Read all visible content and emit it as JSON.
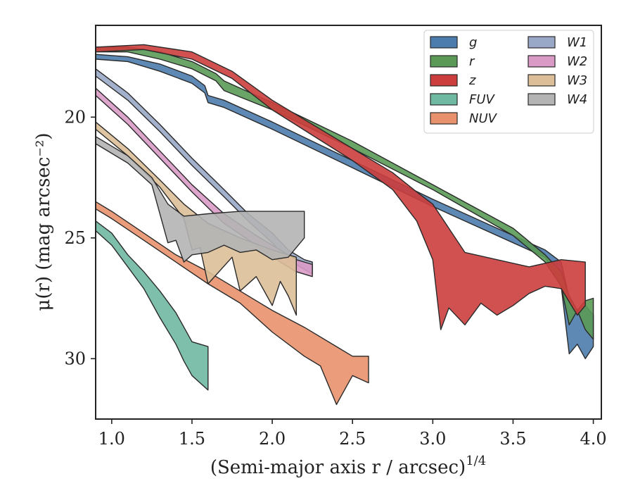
{
  "chart_data": {
    "type": "area",
    "xlabel": "(Semi-major axis r / arcsec)",
    "xlabel_exponent": "1/4",
    "ylabel": "μ(r) (mag arcsec⁻²)",
    "xlim": [
      0.9,
      4.05
    ],
    "ylim": [
      32.5,
      16.2
    ],
    "y_inverted": true,
    "x_ticks": [
      1.0,
      1.5,
      2.0,
      2.5,
      3.0,
      3.5,
      4.0
    ],
    "x_tick_labels": [
      "1.0",
      "1.5",
      "2.0",
      "2.5",
      "3.0",
      "3.5",
      "4.0"
    ],
    "y_ticks": [
      20,
      25,
      30
    ],
    "y_tick_labels": [
      "20",
      "25",
      "30"
    ],
    "legend_position": "top-right",
    "series": [
      {
        "name": "g",
        "color": "#4c7cad",
        "upper": [
          [
            0.9,
            17.4
          ],
          [
            1.1,
            17.5
          ],
          [
            1.3,
            17.8
          ],
          [
            1.5,
            18.3
          ],
          [
            1.58,
            18.7
          ],
          [
            1.6,
            19.1
          ],
          [
            1.7,
            19.3
          ],
          [
            2.0,
            20.2
          ],
          [
            2.5,
            21.8
          ],
          [
            3.0,
            23.4
          ],
          [
            3.5,
            24.9
          ],
          [
            3.7,
            25.5
          ],
          [
            3.8,
            26.0
          ],
          [
            3.85,
            27.5
          ],
          [
            3.9,
            28.0
          ],
          [
            3.95,
            27.8
          ],
          [
            4.0,
            28.2
          ]
        ],
        "lower": [
          [
            4.0,
            29.5
          ],
          [
            3.95,
            30.0
          ],
          [
            3.9,
            29.4
          ],
          [
            3.85,
            29.8
          ],
          [
            3.8,
            27.0
          ],
          [
            3.7,
            25.8
          ],
          [
            3.5,
            25.2
          ],
          [
            3.0,
            23.7
          ],
          [
            2.5,
            22.1
          ],
          [
            2.0,
            20.5
          ],
          [
            1.7,
            19.6
          ],
          [
            1.6,
            19.4
          ],
          [
            1.58,
            19.0
          ],
          [
            1.5,
            18.6
          ],
          [
            1.3,
            18.1
          ],
          [
            1.1,
            17.7
          ],
          [
            0.9,
            17.6
          ]
        ]
      },
      {
        "name": "r",
        "color": "#5a9a56",
        "upper": [
          [
            0.9,
            17.1
          ],
          [
            1.1,
            17.1
          ],
          [
            1.3,
            17.3
          ],
          [
            1.5,
            17.7
          ],
          [
            1.65,
            18.2
          ],
          [
            1.7,
            18.5
          ],
          [
            2.0,
            19.4
          ],
          [
            2.5,
            21.0
          ],
          [
            3.0,
            22.8
          ],
          [
            3.5,
            24.6
          ],
          [
            3.7,
            25.7
          ],
          [
            3.8,
            26.4
          ],
          [
            3.85,
            27.4
          ],
          [
            3.9,
            28.0
          ],
          [
            3.95,
            27.6
          ],
          [
            4.0,
            27.5
          ]
        ],
        "lower": [
          [
            4.0,
            29.2
          ],
          [
            3.95,
            28.8
          ],
          [
            3.9,
            28.0
          ],
          [
            3.85,
            28.6
          ],
          [
            3.8,
            27.0
          ],
          [
            3.7,
            26.0
          ],
          [
            3.5,
            24.9
          ],
          [
            3.0,
            23.0
          ],
          [
            2.5,
            21.3
          ],
          [
            2.0,
            19.7
          ],
          [
            1.7,
            18.9
          ],
          [
            1.65,
            18.5
          ],
          [
            1.5,
            18.0
          ],
          [
            1.3,
            17.6
          ],
          [
            1.1,
            17.3
          ],
          [
            0.9,
            17.3
          ]
        ]
      },
      {
        "name": "z",
        "color": "#cc3d3d",
        "upper": [
          [
            0.9,
            17.1
          ],
          [
            1.2,
            17.0
          ],
          [
            1.5,
            17.3
          ],
          [
            1.75,
            18.1
          ],
          [
            2.0,
            19.3
          ],
          [
            2.5,
            21.3
          ],
          [
            2.75,
            22.3
          ],
          [
            2.9,
            23.1
          ],
          [
            3.0,
            23.6
          ],
          [
            3.1,
            24.6
          ],
          [
            3.2,
            25.6
          ],
          [
            3.4,
            25.9
          ],
          [
            3.6,
            26.2
          ],
          [
            3.8,
            25.9
          ],
          [
            3.95,
            26.0
          ]
        ],
        "lower": [
          [
            3.95,
            27.8
          ],
          [
            3.9,
            28.2
          ],
          [
            3.8,
            27.1
          ],
          [
            3.7,
            27.0
          ],
          [
            3.6,
            27.3
          ],
          [
            3.5,
            27.8
          ],
          [
            3.4,
            28.2
          ],
          [
            3.3,
            27.7
          ],
          [
            3.2,
            28.6
          ],
          [
            3.1,
            27.9
          ],
          [
            3.05,
            28.8
          ],
          [
            3.0,
            25.9
          ],
          [
            2.9,
            24.3
          ],
          [
            2.75,
            23.0
          ],
          [
            2.5,
            21.8
          ],
          [
            2.0,
            19.7
          ],
          [
            1.75,
            18.4
          ],
          [
            1.5,
            17.6
          ],
          [
            1.2,
            17.2
          ],
          [
            0.9,
            17.3
          ]
        ]
      },
      {
        "name": "FUV",
        "color": "#6fb8a1",
        "upper": [
          [
            0.9,
            24.3
          ],
          [
            1.0,
            24.8
          ],
          [
            1.1,
            25.7
          ],
          [
            1.2,
            26.4
          ],
          [
            1.3,
            27.2
          ],
          [
            1.4,
            28.1
          ],
          [
            1.5,
            29.3
          ],
          [
            1.6,
            29.5
          ]
        ],
        "lower": [
          [
            1.6,
            31.3
          ],
          [
            1.55,
            31.0
          ],
          [
            1.5,
            30.7
          ],
          [
            1.45,
            30.1
          ],
          [
            1.4,
            29.4
          ],
          [
            1.3,
            28.3
          ],
          [
            1.2,
            27.1
          ],
          [
            1.1,
            26.2
          ],
          [
            1.0,
            25.3
          ],
          [
            0.9,
            24.7
          ]
        ]
      },
      {
        "name": "NUV",
        "color": "#e8916d",
        "upper": [
          [
            0.9,
            23.5
          ],
          [
            1.0,
            23.9
          ],
          [
            1.2,
            24.8
          ],
          [
            1.4,
            25.7
          ],
          [
            1.6,
            26.4
          ],
          [
            1.8,
            27.2
          ],
          [
            2.0,
            28.0
          ],
          [
            2.2,
            28.7
          ],
          [
            2.4,
            29.5
          ],
          [
            2.5,
            29.9
          ],
          [
            2.6,
            29.9
          ]
        ],
        "lower": [
          [
            2.6,
            31.0
          ],
          [
            2.5,
            30.7
          ],
          [
            2.45,
            31.3
          ],
          [
            2.4,
            31.9
          ],
          [
            2.3,
            30.3
          ],
          [
            2.2,
            29.9
          ],
          [
            2.0,
            28.9
          ],
          [
            1.8,
            27.7
          ],
          [
            1.6,
            26.9
          ],
          [
            1.4,
            26.0
          ],
          [
            1.2,
            25.1
          ],
          [
            1.0,
            24.2
          ],
          [
            0.9,
            23.8
          ]
        ]
      },
      {
        "name": "W1",
        "color": "#9aa8c8",
        "upper": [
          [
            0.9,
            18.0
          ],
          [
            1.1,
            19.0
          ],
          [
            1.3,
            20.3
          ],
          [
            1.5,
            21.7
          ],
          [
            1.7,
            23.0
          ],
          [
            1.85,
            24.0
          ],
          [
            2.0,
            24.8
          ],
          [
            2.1,
            25.5
          ],
          [
            2.2,
            25.9
          ],
          [
            2.25,
            26.0
          ]
        ],
        "lower": [
          [
            2.25,
            26.5
          ],
          [
            2.2,
            26.3
          ],
          [
            2.1,
            25.9
          ],
          [
            2.0,
            25.2
          ],
          [
            1.85,
            24.3
          ],
          [
            1.7,
            23.3
          ],
          [
            1.5,
            22.0
          ],
          [
            1.3,
            20.6
          ],
          [
            1.1,
            19.3
          ],
          [
            0.9,
            18.3
          ]
        ]
      },
      {
        "name": "W2",
        "color": "#d99ac6",
        "upper": [
          [
            0.9,
            18.8
          ],
          [
            1.1,
            20.0
          ],
          [
            1.3,
            21.4
          ],
          [
            1.5,
            22.8
          ],
          [
            1.7,
            24.0
          ],
          [
            1.9,
            24.9
          ],
          [
            2.05,
            25.5
          ],
          [
            2.15,
            25.9
          ],
          [
            2.25,
            26.1
          ]
        ],
        "lower": [
          [
            2.25,
            26.6
          ],
          [
            2.15,
            26.4
          ],
          [
            2.05,
            26.0
          ],
          [
            1.9,
            25.3
          ],
          [
            1.7,
            24.4
          ],
          [
            1.5,
            23.1
          ],
          [
            1.3,
            21.7
          ],
          [
            1.1,
            20.3
          ],
          [
            0.9,
            19.1
          ]
        ]
      },
      {
        "name": "W3",
        "color": "#dcbf98",
        "upper": [
          [
            0.9,
            20.2
          ],
          [
            1.1,
            21.3
          ],
          [
            1.3,
            22.6
          ],
          [
            1.45,
            23.6
          ],
          [
            1.6,
            24.4
          ],
          [
            1.8,
            25.0
          ],
          [
            2.0,
            25.5
          ],
          [
            2.15,
            25.8
          ]
        ],
        "lower": [
          [
            2.15,
            28.2
          ],
          [
            2.1,
            27.4
          ],
          [
            2.05,
            26.8
          ],
          [
            2.0,
            27.8
          ],
          [
            1.9,
            26.6
          ],
          [
            1.8,
            27.2
          ],
          [
            1.75,
            25.8
          ],
          [
            1.6,
            26.9
          ],
          [
            1.55,
            25.4
          ],
          [
            1.5,
            25.5
          ],
          [
            1.45,
            24.2
          ],
          [
            1.3,
            22.9
          ],
          [
            1.1,
            21.6
          ],
          [
            0.9,
            20.5
          ]
        ]
      },
      {
        "name": "W4",
        "color": "#b4b4b4",
        "upper": [
          [
            0.9,
            20.8
          ],
          [
            1.1,
            21.6
          ],
          [
            1.25,
            22.5
          ],
          [
            1.35,
            23.6
          ],
          [
            1.45,
            24.1
          ],
          [
            1.6,
            24.0
          ],
          [
            1.8,
            23.9
          ],
          [
            2.0,
            23.9
          ],
          [
            2.2,
            23.9
          ]
        ],
        "lower": [
          [
            2.2,
            25.0
          ],
          [
            2.1,
            25.8
          ],
          [
            2.0,
            25.9
          ],
          [
            1.9,
            25.5
          ],
          [
            1.8,
            25.6
          ],
          [
            1.7,
            25.3
          ],
          [
            1.6,
            25.6
          ],
          [
            1.5,
            25.7
          ],
          [
            1.45,
            26.0
          ],
          [
            1.4,
            25.1
          ],
          [
            1.35,
            25.2
          ],
          [
            1.25,
            22.8
          ],
          [
            1.1,
            21.9
          ],
          [
            0.9,
            21.1
          ]
        ]
      }
    ]
  }
}
